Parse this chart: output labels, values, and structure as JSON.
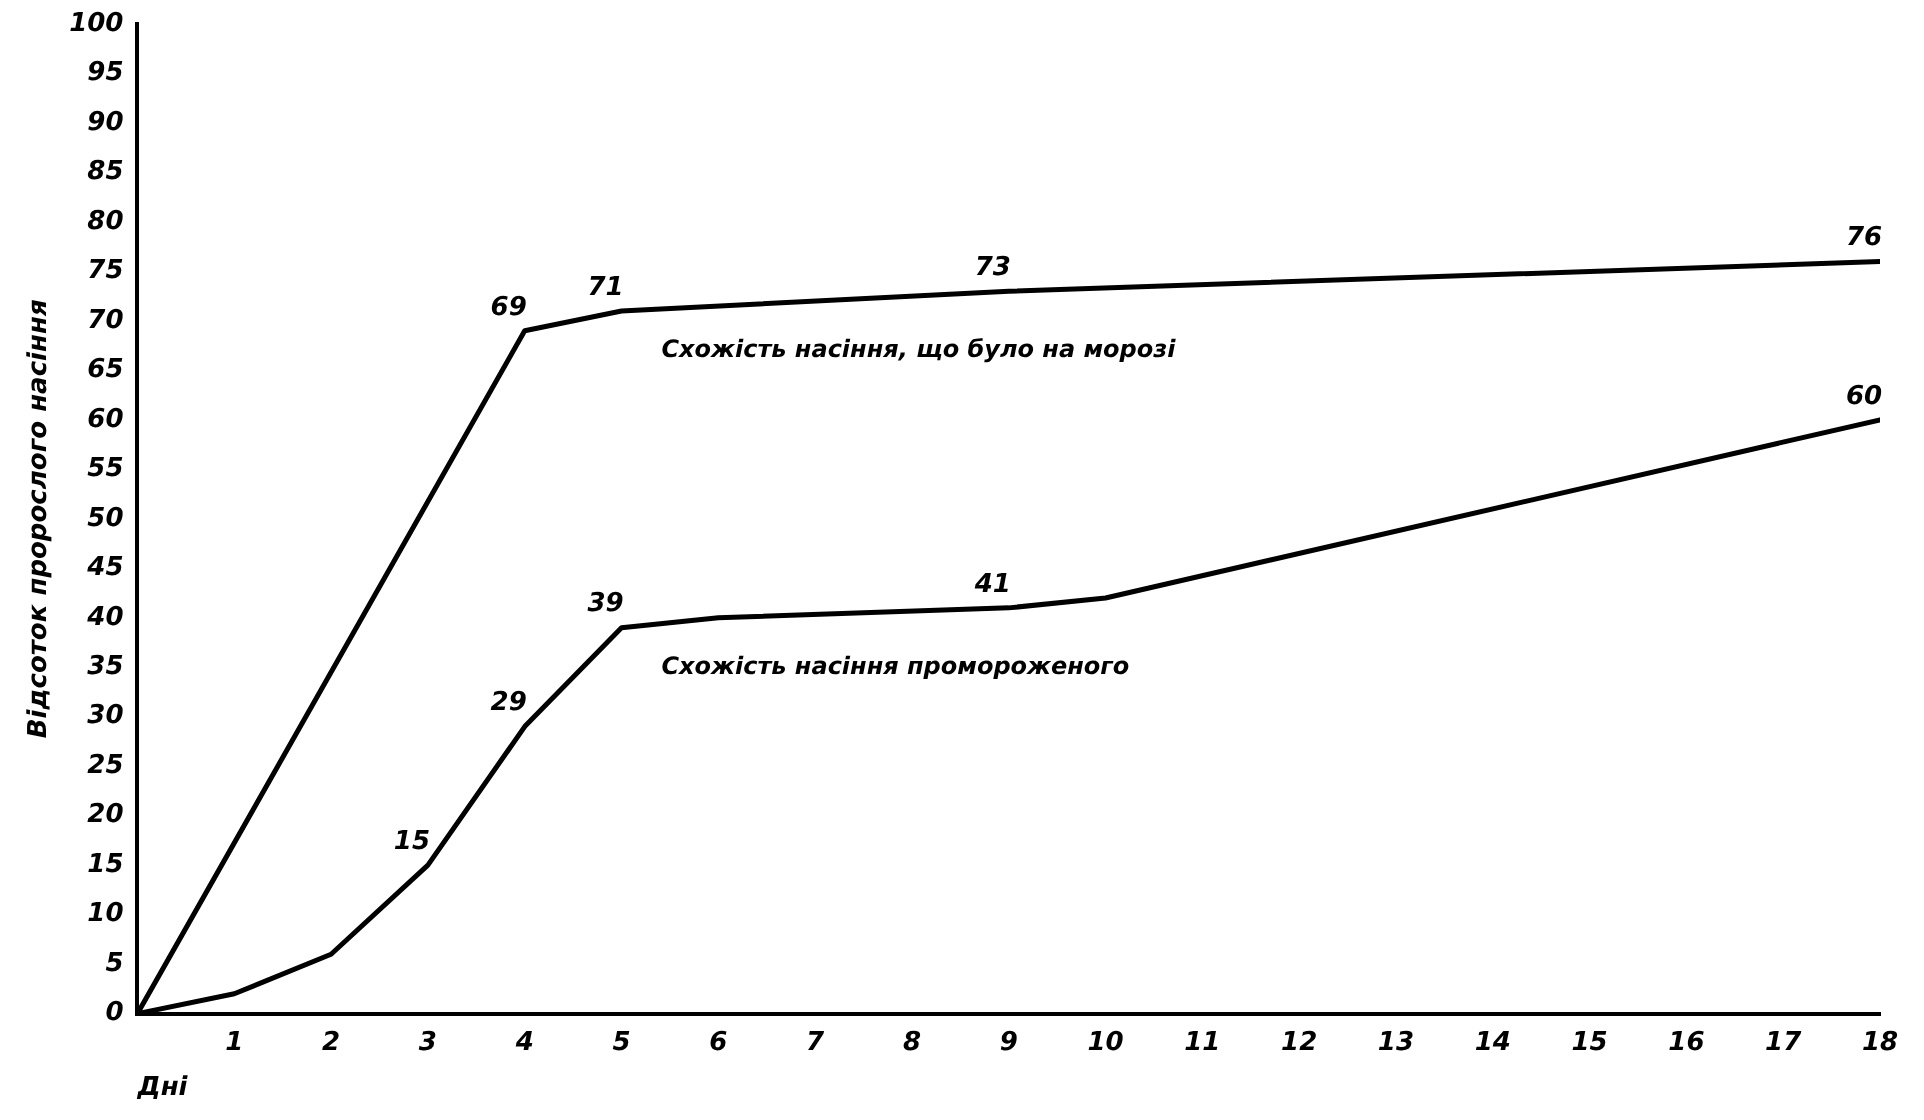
{
  "chart_data": {
    "type": "line",
    "xlabel": "Дні",
    "ylabel": "Відсоток пророслого насіння",
    "xlim": [
      0,
      18
    ],
    "xticks": [
      {
        "value": 0,
        "label": null
      },
      1,
      2,
      3,
      4,
      5,
      6,
      7,
      8,
      9,
      10,
      11,
      12,
      13,
      14,
      15,
      16,
      17,
      18
    ],
    "ylim": [
      0,
      100
    ],
    "yticks": [
      0,
      5,
      10,
      15,
      20,
      25,
      30,
      35,
      40,
      45,
      50,
      55,
      60,
      65,
      70,
      75,
      80,
      85,
      90,
      95,
      100
    ],
    "grid": false,
    "legend": false,
    "marker": "none",
    "line_style": "solid",
    "series": [
      {
        "name": "Схожість насіння, що було на морозі",
        "color": "#000000",
        "x": [
          0,
          4,
          5,
          9,
          18
        ],
        "values": [
          0,
          69,
          71,
          73,
          76
        ],
        "value_labels": [
          null,
          "69",
          "71",
          "73",
          "76"
        ]
      },
      {
        "name": "Схожість насіння промороженого",
        "color": "#000000",
        "x": [
          0,
          1,
          2,
          3,
          4,
          5,
          6,
          9,
          10,
          18
        ],
        "values": [
          0,
          2,
          6,
          15,
          29,
          39,
          40,
          41,
          42,
          60
        ],
        "value_labels": [
          null,
          null,
          null,
          "15",
          "29",
          "39",
          null,
          "41",
          null,
          "60"
        ]
      }
    ]
  }
}
